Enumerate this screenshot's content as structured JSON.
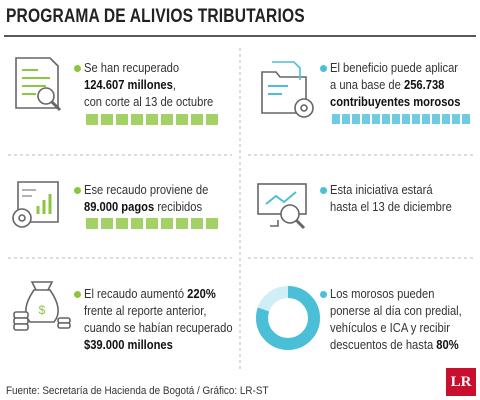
{
  "title": "PROGRAMA DE ALIVIOS TRIBUTARIOS",
  "items": [
    {
      "lines": [
        [
          {
            "text": "Se han recuperado"
          }
        ],
        [
          {
            "text": "124.607 millones",
            "bold": true
          },
          {
            "text": ","
          }
        ],
        [
          {
            "text": "con corte al 13 de octubre"
          }
        ]
      ]
    },
    {
      "lines": [
        [
          {
            "text": "El beneficio puede aplicar"
          }
        ],
        [
          {
            "text": "a una base de "
          },
          {
            "text": "256.738",
            "bold": true
          }
        ],
        [
          {
            "text": "contribuyentes morosos",
            "bold": true
          }
        ]
      ]
    },
    {
      "lines": [
        [
          {
            "text": "Ese recaudo proviene de"
          }
        ],
        [
          {
            "text": "89.000 pagos",
            "bold": true
          },
          {
            "text": " recibidos"
          }
        ]
      ]
    },
    {
      "lines": [
        [
          {
            "text": "Esta iniciativa estará"
          }
        ],
        [
          {
            "text": "hasta el 13 de diciembre"
          }
        ]
      ]
    },
    {
      "lines": [
        [
          {
            "text": "El recaudo aumentó "
          },
          {
            "text": "220%",
            "bold": true
          }
        ],
        [
          {
            "text": "frente al reporte anterior,"
          }
        ],
        [
          {
            "text": "cuando se habían recuperado"
          }
        ],
        [
          {
            "text": "$39.000 millones",
            "bold": true
          }
        ]
      ]
    },
    {
      "lines": [
        [
          {
            "text": "Los morosos pueden"
          }
        ],
        [
          {
            "text": "ponerse al día con predial,"
          }
        ],
        [
          {
            "text": "vehículos e ICA y recibir"
          }
        ],
        [
          {
            "text": "descuentos de hasta "
          },
          {
            "text": "80%",
            "bold": true
          }
        ]
      ]
    }
  ],
  "source": "Fuente: Secretaría de Hacienda de Bogotá / Gráfico: LR-ST",
  "logo": "LR"
}
